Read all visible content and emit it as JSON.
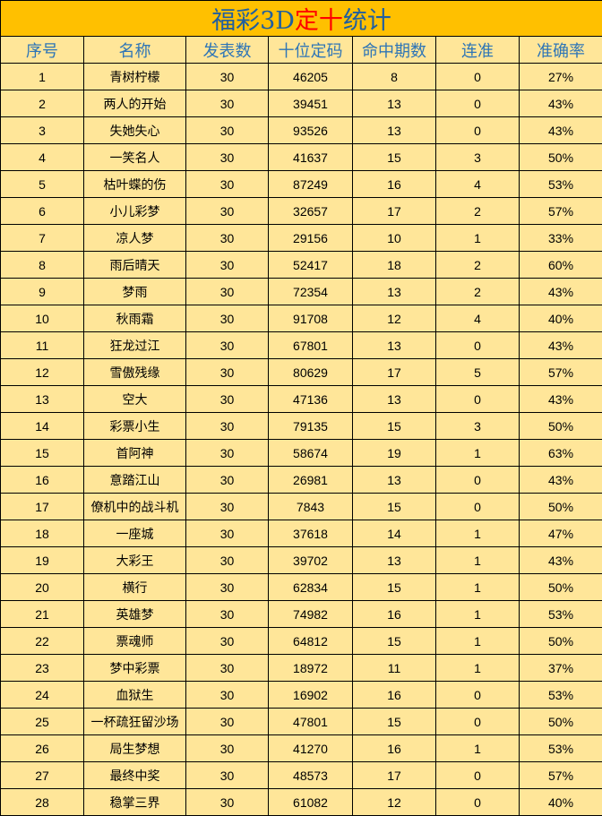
{
  "title": {
    "part1": "福彩3D",
    "part2": "定十",
    "part3": "统计",
    "color_main": "#1F5FA0",
    "color_highlight": "#FF0000"
  },
  "colors": {
    "title_bg": "#FFC000",
    "table_bg": "#FFE699",
    "header_text": "#2E75B6"
  },
  "columns": [
    "序号",
    "名称",
    "发表数",
    "十位定码",
    "命中期数",
    "连准",
    "准确率"
  ],
  "rows": [
    [
      "1",
      "青树柠檬",
      "30",
      "46205",
      "8",
      "0",
      "27%"
    ],
    [
      "2",
      "两人的开始",
      "30",
      "39451",
      "13",
      "0",
      "43%"
    ],
    [
      "3",
      "失她失心",
      "30",
      "93526",
      "13",
      "0",
      "43%"
    ],
    [
      "4",
      "一笑名人",
      "30",
      "41637",
      "15",
      "3",
      "50%"
    ],
    [
      "5",
      "枯叶蝶的伤",
      "30",
      "87249",
      "16",
      "4",
      "53%"
    ],
    [
      "6",
      "小儿彩梦",
      "30",
      "32657",
      "17",
      "2",
      "57%"
    ],
    [
      "7",
      "凉人梦",
      "30",
      "29156",
      "10",
      "1",
      "33%"
    ],
    [
      "8",
      "雨后晴天",
      "30",
      "52417",
      "18",
      "2",
      "60%"
    ],
    [
      "9",
      "梦雨",
      "30",
      "72354",
      "13",
      "2",
      "43%"
    ],
    [
      "10",
      "秋雨霜",
      "30",
      "91708",
      "12",
      "4",
      "40%"
    ],
    [
      "11",
      "狂龙过江",
      "30",
      "67801",
      "13",
      "0",
      "43%"
    ],
    [
      "12",
      "雪傲残缘",
      "30",
      "80629",
      "17",
      "5",
      "57%"
    ],
    [
      "13",
      "空大",
      "30",
      "47136",
      "13",
      "0",
      "43%"
    ],
    [
      "14",
      "彩票小生",
      "30",
      "79135",
      "15",
      "3",
      "50%"
    ],
    [
      "15",
      "首阿神",
      "30",
      "58674",
      "19",
      "1",
      "63%"
    ],
    [
      "16",
      "意踏江山",
      "30",
      "26981",
      "13",
      "0",
      "43%"
    ],
    [
      "17",
      "僚机中的战斗机",
      "30",
      "7843",
      "15",
      "0",
      "50%"
    ],
    [
      "18",
      "一座城",
      "30",
      "37618",
      "14",
      "1",
      "47%"
    ],
    [
      "19",
      "大彩王",
      "30",
      "39702",
      "13",
      "1",
      "43%"
    ],
    [
      "20",
      "横行",
      "30",
      "62834",
      "15",
      "1",
      "50%"
    ],
    [
      "21",
      "英雄梦",
      "30",
      "74982",
      "16",
      "1",
      "53%"
    ],
    [
      "22",
      "票魂师",
      "30",
      "64812",
      "15",
      "1",
      "50%"
    ],
    [
      "23",
      "梦中彩票",
      "30",
      "18972",
      "11",
      "1",
      "37%"
    ],
    [
      "24",
      "血狱生",
      "30",
      "16902",
      "16",
      "0",
      "53%"
    ],
    [
      "25",
      "一杯疏狂留沙场",
      "30",
      "47801",
      "15",
      "0",
      "50%"
    ],
    [
      "26",
      "局生梦想",
      "30",
      "41270",
      "16",
      "1",
      "53%"
    ],
    [
      "27",
      "最终中奖",
      "30",
      "48573",
      "17",
      "0",
      "57%"
    ],
    [
      "28",
      "稳掌三界",
      "30",
      "61082",
      "12",
      "0",
      "40%"
    ]
  ]
}
